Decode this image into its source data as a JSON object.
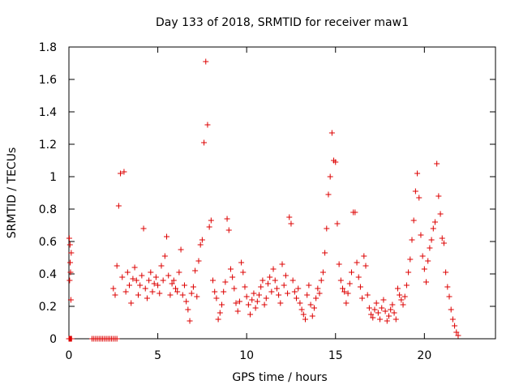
{
  "chart_data": {
    "type": "scatter",
    "title": "Day 133 of 2018, SRMTID for receiver maw1",
    "xlabel": "GPS time / hours",
    "ylabel": "SRMTID / TECUs",
    "xlim": [
      0,
      24
    ],
    "ylim": [
      0,
      1.8
    ],
    "grid": false,
    "xticks": [
      0,
      5,
      10,
      15,
      20
    ],
    "xtick_labels": [
      "0",
      "5",
      "10",
      "15",
      "20"
    ],
    "yticks": [
      0,
      0.2,
      0.4,
      0.6,
      0.8,
      1,
      1.2,
      1.4,
      1.6,
      1.8
    ],
    "ytick_labels": [
      "0",
      "0.2",
      "0.4",
      "0.6",
      "0.8",
      "1",
      "1.2",
      "1.4",
      "1.6",
      "1.8"
    ],
    "marker": "+",
    "marker_color": "#dd0000",
    "series": [
      {
        "name": "SRMTID",
        "x": [
          0.0,
          0.03,
          0.05,
          0.08,
          0.1,
          0.12,
          0.15,
          0.02,
          0.06,
          0.09,
          0.04,
          0.11,
          0.07,
          0.13,
          1.3,
          1.4,
          1.5,
          1.6,
          1.7,
          1.8,
          1.9,
          2.0,
          2.1,
          2.2,
          2.3,
          2.4,
          2.5,
          2.6,
          2.7,
          2.5,
          2.6,
          2.7,
          2.8,
          2.9,
          3.0,
          3.1,
          3.2,
          3.3,
          3.4,
          3.5,
          3.6,
          3.7,
          3.8,
          3.9,
          4.0,
          4.1,
          4.2,
          4.3,
          4.4,
          4.5,
          4.6,
          4.7,
          4.8,
          4.9,
          5.0,
          5.1,
          5.2,
          5.3,
          5.4,
          5.5,
          5.6,
          5.7,
          5.8,
          5.9,
          6.0,
          6.1,
          6.2,
          6.3,
          6.4,
          6.5,
          6.6,
          6.7,
          6.8,
          6.9,
          7.0,
          7.1,
          7.2,
          7.3,
          7.4,
          7.5,
          7.6,
          7.7,
          7.8,
          7.9,
          8.0,
          8.1,
          8.2,
          8.3,
          8.4,
          8.5,
          8.6,
          8.7,
          8.8,
          8.9,
          9.0,
          9.1,
          9.2,
          9.3,
          9.4,
          9.5,
          9.6,
          9.7,
          9.8,
          9.9,
          10.0,
          10.1,
          10.2,
          10.3,
          10.4,
          10.5,
          10.6,
          10.7,
          10.8,
          10.9,
          11.0,
          11.1,
          11.2,
          11.3,
          11.4,
          11.5,
          11.6,
          11.7,
          11.8,
          11.9,
          12.0,
          12.1,
          12.2,
          12.3,
          12.4,
          12.5,
          12.6,
          12.7,
          12.8,
          12.9,
          13.0,
          13.1,
          13.2,
          13.3,
          13.4,
          13.5,
          13.6,
          13.7,
          13.8,
          13.9,
          14.0,
          14.1,
          14.2,
          14.3,
          14.4,
          14.5,
          14.6,
          14.7,
          14.8,
          14.9,
          15.0,
          15.1,
          15.2,
          15.3,
          15.4,
          15.5,
          15.6,
          15.7,
          15.8,
          15.9,
          16.0,
          16.1,
          16.2,
          16.3,
          16.4,
          16.5,
          16.6,
          16.7,
          16.8,
          16.9,
          17.0,
          17.1,
          17.2,
          17.3,
          17.4,
          17.5,
          17.6,
          17.7,
          17.8,
          17.9,
          18.0,
          18.1,
          18.2,
          18.3,
          18.4,
          18.5,
          18.6,
          18.7,
          18.8,
          18.9,
          19.0,
          19.1,
          19.2,
          19.3,
          19.4,
          19.5,
          19.6,
          19.7,
          19.8,
          19.9,
          20.0,
          20.1,
          20.2,
          20.3,
          20.4,
          20.5,
          20.6,
          20.7,
          20.8,
          20.9,
          21.0,
          21.1,
          21.2,
          21.3,
          21.4,
          21.5,
          21.6,
          21.7,
          21.8,
          21.9
        ],
        "y": [
          0.0,
          0.0,
          0.0,
          0.0,
          0.0,
          0.0,
          0.0,
          0.62,
          0.58,
          0.41,
          0.36,
          0.24,
          0.47,
          0.53,
          0.0,
          0.0,
          0.0,
          0.0,
          0.0,
          0.0,
          0.0,
          0.0,
          0.0,
          0.0,
          0.0,
          0.0,
          0.0,
          0.0,
          0.0,
          0.31,
          0.27,
          0.45,
          0.82,
          1.02,
          0.38,
          1.03,
          0.29,
          0.41,
          0.33,
          0.22,
          0.37,
          0.44,
          0.36,
          0.27,
          0.33,
          0.39,
          0.68,
          0.31,
          0.25,
          0.36,
          0.41,
          0.29,
          0.34,
          0.38,
          0.33,
          0.28,
          0.45,
          0.36,
          0.51,
          0.63,
          0.39,
          0.27,
          0.34,
          0.36,
          0.31,
          0.29,
          0.41,
          0.55,
          0.27,
          0.33,
          0.23,
          0.18,
          0.11,
          0.28,
          0.32,
          0.42,
          0.26,
          0.48,
          0.58,
          0.61,
          1.21,
          1.71,
          1.32,
          0.69,
          0.73,
          0.36,
          0.29,
          0.25,
          0.12,
          0.16,
          0.21,
          0.29,
          0.35,
          0.74,
          0.67,
          0.43,
          0.38,
          0.31,
          0.22,
          0.17,
          0.23,
          0.47,
          0.41,
          0.32,
          0.26,
          0.21,
          0.15,
          0.24,
          0.28,
          0.19,
          0.23,
          0.27,
          0.32,
          0.36,
          0.21,
          0.25,
          0.34,
          0.38,
          0.29,
          0.43,
          0.36,
          0.31,
          0.27,
          0.22,
          0.46,
          0.33,
          0.39,
          0.28,
          0.75,
          0.71,
          0.36,
          0.29,
          0.25,
          0.31,
          0.22,
          0.18,
          0.15,
          0.12,
          0.27,
          0.33,
          0.21,
          0.14,
          0.19,
          0.25,
          0.31,
          0.28,
          0.36,
          0.41,
          0.53,
          0.68,
          0.89,
          1.0,
          1.27,
          1.1,
          1.09,
          0.71,
          0.46,
          0.36,
          0.31,
          0.29,
          0.22,
          0.28,
          0.34,
          0.41,
          0.78,
          0.78,
          0.47,
          0.38,
          0.32,
          0.25,
          0.51,
          0.45,
          0.27,
          0.19,
          0.15,
          0.13,
          0.18,
          0.22,
          0.16,
          0.12,
          0.19,
          0.24,
          0.17,
          0.11,
          0.14,
          0.18,
          0.21,
          0.16,
          0.12,
          0.31,
          0.27,
          0.24,
          0.21,
          0.26,
          0.33,
          0.41,
          0.49,
          0.61,
          0.73,
          0.91,
          1.02,
          0.87,
          0.64,
          0.51,
          0.43,
          0.35,
          0.48,
          0.56,
          0.61,
          0.68,
          0.72,
          1.08,
          0.88,
          0.77,
          0.62,
          0.59,
          0.41,
          0.32,
          0.26,
          0.18,
          0.12,
          0.08,
          0.04,
          0.02
        ]
      }
    ]
  }
}
